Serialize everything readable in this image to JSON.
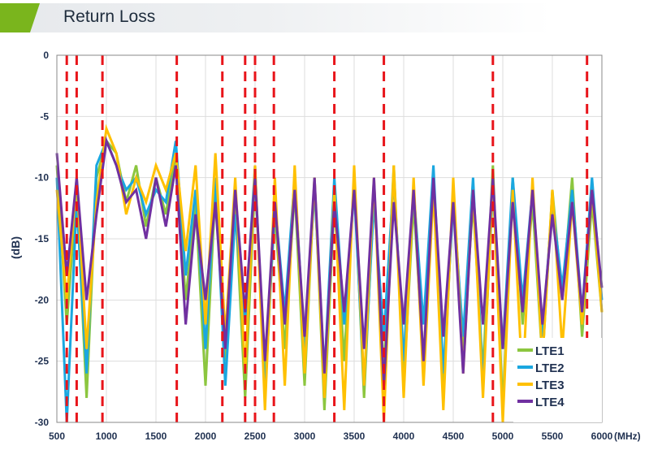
{
  "header": {
    "title": "Return Loss",
    "accent": "#7ab51d"
  },
  "chart_data": {
    "type": "line",
    "title": "",
    "xlabel": "(MHz)",
    "ylabel": "(dB)",
    "xlim": [
      500,
      6000
    ],
    "ylim": [
      -30,
      0
    ],
    "xticks": [
      "500",
      "1000",
      "1500",
      "2000",
      "2500",
      "3000",
      "3500",
      "4000",
      "4500",
      "5000",
      "5500",
      "6000"
    ],
    "yticks": [
      "0",
      "-5",
      "-10",
      "-15",
      "-20",
      "-25",
      "-30"
    ],
    "grid": true,
    "legend": "bottom-right",
    "markers_mhz": [
      600,
      700,
      960,
      1710,
      2170,
      2400,
      2500,
      2690,
      3300,
      3800,
      4900,
      5850
    ],
    "marker_color": "#e8141a",
    "x_start": 500,
    "x_step": 100,
    "series": [
      {
        "name": "LTE1",
        "color": "#8cc63f",
        "values": [
          -9,
          -22,
          -11,
          -28,
          -10,
          -7,
          -8,
          -12,
          -9,
          -14,
          -10,
          -13,
          -8,
          -20,
          -12,
          -27,
          -11,
          -25,
          -12,
          -28,
          -10,
          -26,
          -13,
          -24,
          -11,
          -27,
          -10,
          -29,
          -12,
          -25,
          -10,
          -28,
          -11,
          -26,
          -9,
          -27,
          -12,
          -25,
          -10,
          -28,
          -11,
          -24,
          -12,
          -26,
          -9,
          -29,
          -10,
          -22,
          -12,
          -25,
          -11,
          -20,
          -10,
          -23,
          -12,
          -21
        ]
      },
      {
        "name": "LTE2",
        "color": "#1aa7e0",
        "values": [
          -10,
          -30,
          -12,
          -26,
          -9,
          -7,
          -9,
          -11,
          -10,
          -13,
          -11,
          -12,
          -7,
          -18,
          -11,
          -24,
          -10,
          -27,
          -13,
          -22,
          -9,
          -28,
          -12,
          -21,
          -10,
          -24,
          -11,
          -26,
          -10,
          -22,
          -11,
          -27,
          -12,
          -23,
          -10,
          -25,
          -11,
          -22,
          -9,
          -26,
          -12,
          -23,
          -10,
          -27,
          -11,
          -24,
          -10,
          -20,
          -11,
          -23,
          -12,
          -19,
          -11,
          -21,
          -10,
          -20
        ]
      },
      {
        "name": "LTE3",
        "color": "#ffc000",
        "values": [
          -11,
          -20,
          -10,
          -24,
          -12,
          -6,
          -8,
          -13,
          -10,
          -12,
          -9,
          -11,
          -8,
          -16,
          -9,
          -22,
          -8,
          -23,
          -10,
          -26,
          -9,
          -29,
          -10,
          -27,
          -9,
          -26,
          -10,
          -28,
          -11,
          -29,
          -9,
          -27,
          -10,
          -30,
          -9,
          -28,
          -10,
          -27,
          -11,
          -29,
          -10,
          -26,
          -11,
          -28,
          -10,
          -30,
          -11,
          -27,
          -10,
          -25,
          -11,
          -24,
          -12,
          -22,
          -11,
          -21
        ]
      },
      {
        "name": "LTE4",
        "color": "#7030a0",
        "values": [
          -8,
          -18,
          -10,
          -20,
          -13,
          -7,
          -9,
          -12,
          -11,
          -15,
          -10,
          -14,
          -9,
          -22,
          -13,
          -20,
          -12,
          -24,
          -11,
          -21,
          -10,
          -25,
          -12,
          -22,
          -11,
          -23,
          -10,
          -26,
          -12,
          -21,
          -11,
          -24,
          -10,
          -27,
          -12,
          -22,
          -11,
          -25,
          -10,
          -23,
          -12,
          -26,
          -11,
          -22,
          -10,
          -24,
          -12,
          -21,
          -11,
          -22,
          -13,
          -20,
          -12,
          -21,
          -11,
          -19
        ]
      }
    ]
  }
}
